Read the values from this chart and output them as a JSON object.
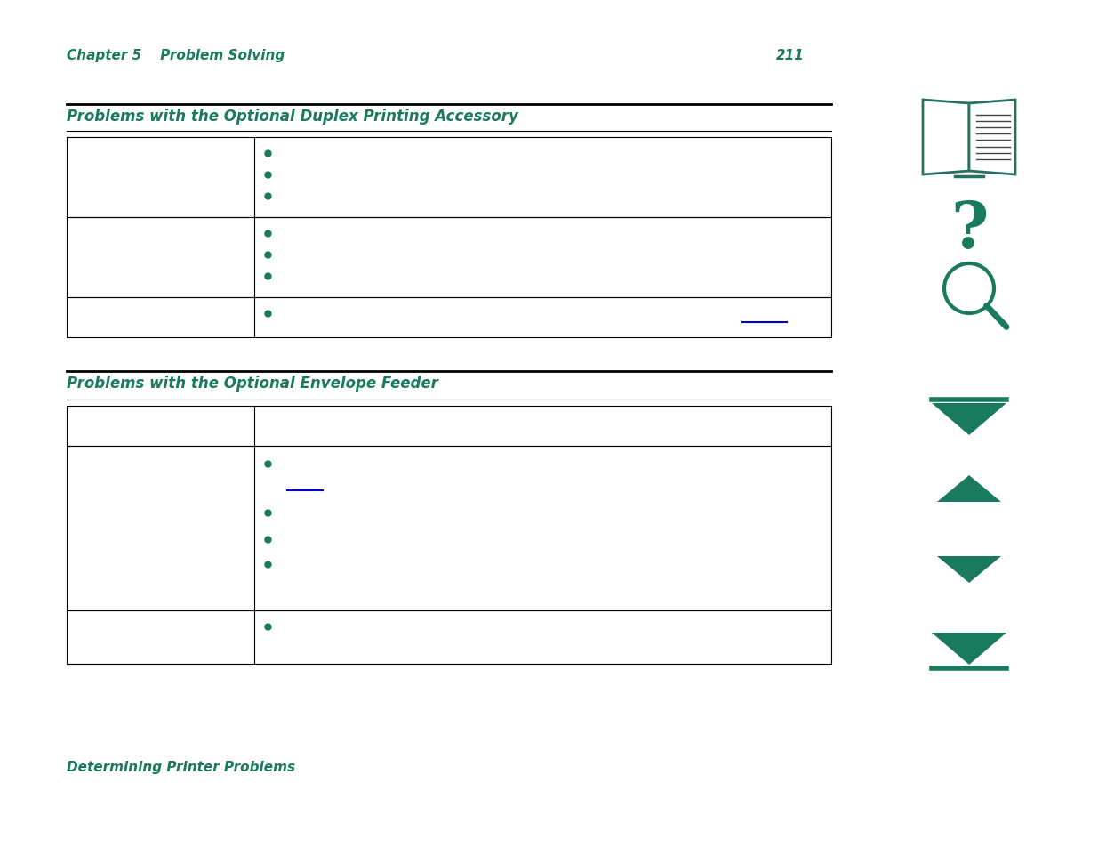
{
  "bg_color": "#ffffff",
  "teal_color": "#1a7a5e",
  "black": "#000000",
  "blue": "#0000cc",
  "page_number": "211",
  "chapter_header": "Chapter 5    Problem Solving",
  "section1_title": "Problems with the Optional Duplex Printing Accessory",
  "section2_title": "Problems with the Optional Envelope Feeder",
  "footer_text": "Determining Printer Problems",
  "figw": 12.35,
  "figh": 9.54,
  "dpi": 100
}
